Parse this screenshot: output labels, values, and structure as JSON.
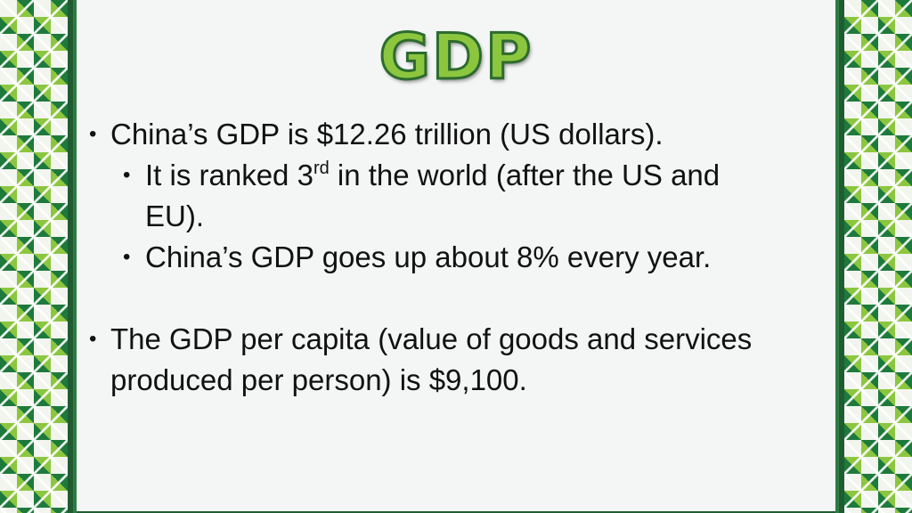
{
  "slide": {
    "title": "GDP",
    "bullets": [
      {
        "text": "China’s GDP is $12.26 trillion (US dollars)."
      },
      {
        "text_before": "It is ranked 3",
        "superscript": "rd",
        "text_after": " in the world (after the US and",
        "text_line2": "EU)."
      },
      {
        "text": "China’s GDP goes up about 8% every year."
      },
      {
        "text_line1": "The GDP per capita (value of goods and services",
        "text_line2": "produced per person) is $9,100."
      }
    ],
    "bullet_glyph": "•"
  },
  "colors": {
    "title_fill": "#8cc63f",
    "title_outline": "#2d6b2f",
    "frame": "#1f5c32",
    "panel": "#f3f6f4",
    "pattern_dark": "#1e7a3c",
    "pattern_light": "#8cc63f"
  }
}
